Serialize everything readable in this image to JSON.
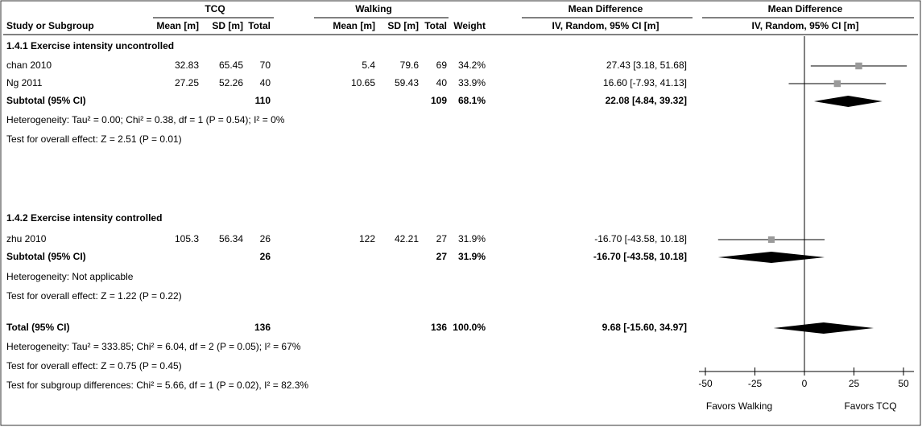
{
  "header": {
    "group1": "TCQ",
    "group2": "Walking",
    "md_table": "Mean Difference",
    "md_plot": "Mean Difference",
    "study": "Study or Subgroup",
    "mean1": "Mean [m]",
    "sd1": "SD [m]",
    "total1": "Total",
    "mean2": "Mean [m]",
    "sd2": "SD [m]",
    "total2": "Total",
    "weight": "Weight",
    "method_table": "IV, Random, 95% CI [m]",
    "method_plot": "IV, Random, 95% CI [m]"
  },
  "subgroups": [
    {
      "title": "1.4.1 Exercise intensity uncontrolled",
      "studies": [
        {
          "study": "chan 2010",
          "mean1": 32.83,
          "sd1": 65.45,
          "total1": 70,
          "mean2": 5.4,
          "sd2": 79.6,
          "total2": 69,
          "weight": {
            "value": 34.2,
            "label": "34.2%"
          },
          "ci_label": "27.43 [3.18, 51.68]",
          "md": 27.43,
          "lo": 3.18,
          "hi": 51.68
        },
        {
          "study": "Ng 2011",
          "mean1": 27.25,
          "sd1": 52.26,
          "total1": 40,
          "mean2": 10.65,
          "sd2": 59.43,
          "total2": 40,
          "weight": {
            "value": 33.9,
            "label": "33.9%"
          },
          "ci_label": "16.60 [-7.93, 41.13]",
          "md": 16.6,
          "lo": -7.93,
          "hi": 41.13
        }
      ],
      "subtotal": {
        "label": "Subtotal (95% CI)",
        "total1": 110,
        "total2": 109,
        "weight": {
          "value": 68.1,
          "label": "68.1%"
        },
        "ci_label": "22.08 [4.84, 39.32]",
        "md": 22.08,
        "lo": 4.84,
        "hi": 39.32
      },
      "heterogeneity": "Heterogeneity: Tau² = 0.00; Chi² = 0.38, df = 1 (P = 0.54); I² = 0%",
      "overall": "Test for overall effect: Z = 2.51 (P = 0.01)"
    },
    {
      "title": "1.4.2 Exercise intensity controlled",
      "studies": [
        {
          "study": "zhu 2010",
          "mean1": 105.3,
          "sd1": 56.34,
          "total1": 26,
          "mean2": 122,
          "sd2": 42.21,
          "total2": 27,
          "weight": {
            "value": 31.9,
            "label": "31.9%"
          },
          "ci_label": "-16.70 [-43.58, 10.18]",
          "md": -16.7,
          "lo": -43.58,
          "hi": 10.18
        }
      ],
      "subtotal": {
        "label": "Subtotal (95% CI)",
        "total1": 26,
        "total2": 27,
        "weight": {
          "value": 31.9,
          "label": "31.9%"
        },
        "ci_label": "-16.70 [-43.58, 10.18]",
        "md": -16.7,
        "lo": -43.58,
        "hi": 10.18
      },
      "heterogeneity": "Heterogeneity: Not applicable",
      "overall": "Test for overall effect: Z = 1.22 (P = 0.22)"
    }
  ],
  "total": {
    "label": "Total (95% CI)",
    "total1": 136,
    "total2": 136,
    "weight": {
      "value": 100,
      "label": "100.0%"
    },
    "ci_label": "9.68 [-15.60, 34.97]",
    "md": 9.68,
    "lo": -15.6,
    "hi": 34.97
  },
  "total_heterogeneity": "Heterogeneity: Tau² = 333.85; Chi² = 6.04, df = 2 (P = 0.05); I² = 67%",
  "total_overall": "Test for overall effect: Z = 0.75 (P = 0.45)",
  "subgroup_differences": "Test for subgroup differences: Chi² = 5.66, df = 1 (P = 0.02), I² = 82.3%",
  "plot": {
    "xlim": [
      -50,
      50
    ],
    "xticks": [
      -50,
      -25,
      0,
      25,
      50
    ],
    "favors_left": "Favors Walking",
    "favors_right": "Favors TCQ"
  }
}
